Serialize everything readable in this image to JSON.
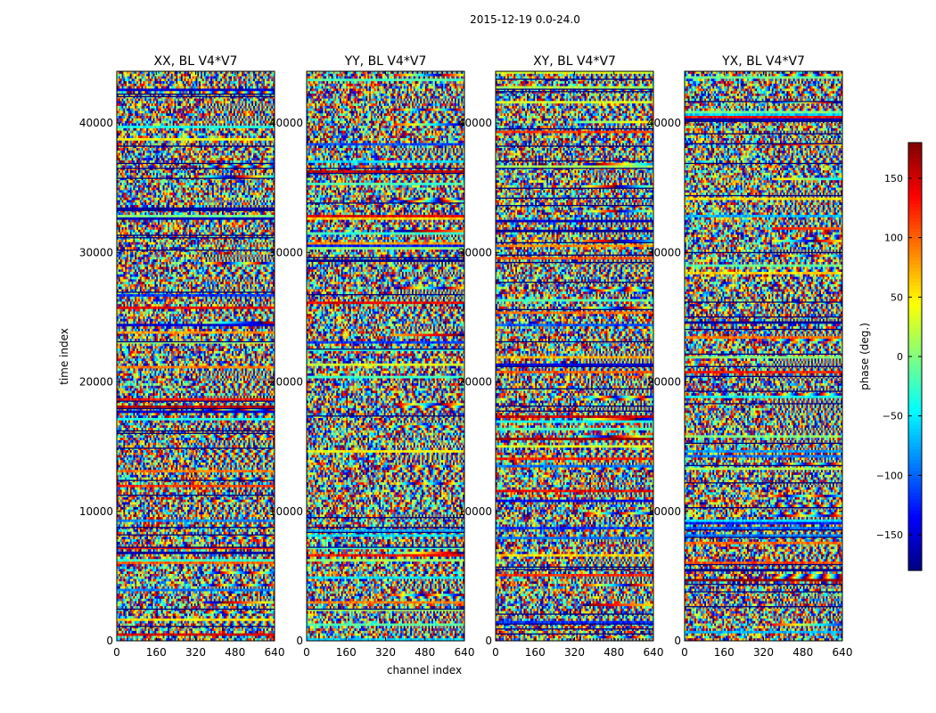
{
  "chart_data": {
    "type": "heatmap",
    "suptitle": "2015-12-19 0.0-24.0",
    "xlabel": "channel index",
    "ylabel": "time index",
    "xlim": [
      0,
      640
    ],
    "ylim": [
      0,
      44000
    ],
    "x_ticks": [
      0,
      160,
      320,
      480,
      640
    ],
    "y_ticks": [
      0,
      10000,
      20000,
      30000,
      40000
    ],
    "colormap": "jet",
    "colorbar": {
      "label": "phase (deg.)",
      "range": [
        -180,
        180
      ],
      "ticks": [
        -150,
        -100,
        -50,
        0,
        50,
        100,
        150
      ],
      "tick_labels": [
        "−150",
        "−100",
        "−50",
        "0",
        "50",
        "100",
        "150"
      ]
    },
    "panels": [
      {
        "title": "XX, BL V4*V7",
        "polarization": "XX"
      },
      {
        "title": "YY, BL V4*V7",
        "polarization": "YY"
      },
      {
        "title": "XY, BL V4*V7",
        "polarization": "XY"
      },
      {
        "title": "YX, BL V4*V7",
        "polarization": "YX"
      }
    ]
  }
}
